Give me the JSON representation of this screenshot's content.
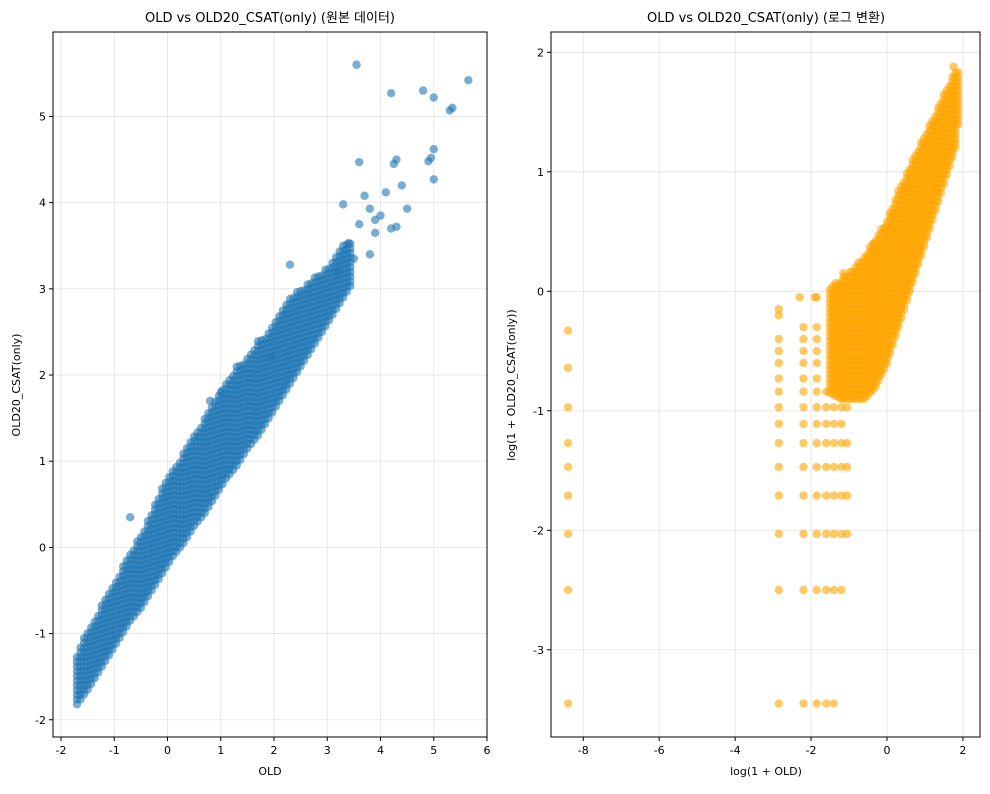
{
  "chart_data": [
    {
      "type": "scatter",
      "title": "OLD vs OLD20_CSAT(only) (원본 데이터)",
      "xlabel": "OLD",
      "ylabel": "OLD20_CSAT(only)",
      "xlim": [
        -2.15,
        6.0
      ],
      "ylim": [
        -2.2,
        5.98
      ],
      "xticks": [
        -2,
        -1,
        0,
        1,
        2,
        3,
        4,
        5,
        6
      ],
      "yticks": [
        -2,
        -1,
        0,
        1,
        2,
        3,
        4,
        5
      ],
      "grid": true,
      "color": "#1f77b4",
      "alpha": 0.6,
      "dense_band": [
        [
          -1.7,
          -1.82,
          -1.25
        ],
        [
          -1.5,
          -1.65,
          -0.95
        ],
        [
          -1.3,
          -1.45,
          -0.75
        ],
        [
          -1.1,
          -1.25,
          -0.5
        ],
        [
          -0.9,
          -1.05,
          -0.3
        ],
        [
          -0.7,
          -0.85,
          -0.05
        ],
        [
          -0.5,
          -0.7,
          0.15
        ],
        [
          -0.3,
          -0.5,
          0.4
        ],
        [
          -0.1,
          -0.3,
          0.7
        ],
        [
          0.1,
          -0.1,
          0.9
        ],
        [
          0.3,
          0.05,
          1.1
        ],
        [
          0.5,
          0.25,
          1.3
        ],
        [
          0.7,
          0.4,
          1.5
        ],
        [
          0.9,
          0.6,
          1.7
        ],
        [
          1.1,
          0.8,
          1.9
        ],
        [
          1.3,
          0.95,
          2.1
        ],
        [
          1.5,
          1.15,
          2.2
        ],
        [
          1.7,
          1.3,
          2.4
        ],
        [
          1.9,
          1.5,
          2.5
        ],
        [
          2.1,
          1.7,
          2.7
        ],
        [
          2.3,
          1.9,
          2.9
        ],
        [
          2.5,
          2.1,
          3.0
        ],
        [
          2.7,
          2.3,
          3.1
        ],
        [
          2.9,
          2.5,
          3.2
        ],
        [
          3.1,
          2.7,
          3.3
        ],
        [
          3.3,
          2.9,
          3.5
        ],
        [
          3.5,
          3.1,
          3.6
        ]
      ],
      "points": [
        [
          3.55,
          5.6
        ],
        [
          5.65,
          5.42
        ],
        [
          4.8,
          5.3
        ],
        [
          4.2,
          5.27
        ],
        [
          5.0,
          5.22
        ],
        [
          5.35,
          5.1
        ],
        [
          5.3,
          5.07
        ],
        [
          5.0,
          4.62
        ],
        [
          4.95,
          4.52
        ],
        [
          4.9,
          4.48
        ],
        [
          4.3,
          4.5
        ],
        [
          4.25,
          4.45
        ],
        [
          3.6,
          4.47
        ],
        [
          5.0,
          4.27
        ],
        [
          4.4,
          4.2
        ],
        [
          4.1,
          4.12
        ],
        [
          3.7,
          4.08
        ],
        [
          3.8,
          3.93
        ],
        [
          3.3,
          3.98
        ],
        [
          4.5,
          3.93
        ],
        [
          4.3,
          3.72
        ],
        [
          4.0,
          3.85
        ],
        [
          3.9,
          3.8
        ],
        [
          1.95,
          2.2
        ],
        [
          1.0,
          1.8
        ],
        [
          0.8,
          1.7
        ],
        [
          -0.7,
          0.35
        ],
        [
          2.3,
          3.28
        ],
        [
          3.2,
          3.2
        ],
        [
          3.5,
          3.35
        ],
        [
          3.8,
          3.4
        ],
        [
          3.4,
          3.53
        ],
        [
          3.9,
          3.65
        ],
        [
          3.6,
          3.75
        ],
        [
          4.2,
          3.7
        ]
      ]
    },
    {
      "type": "scatter",
      "title": "OLD vs OLD20_CSAT(only) (로그 변환)",
      "xlabel": "log(1 + OLD)",
      "ylabel": "log(1 + OLD20_CSAT(only))",
      "xlim": [
        -8.85,
        2.45
      ],
      "ylim": [
        -3.73,
        2.17
      ],
      "xticks": [
        -8,
        -6,
        -4,
        -2,
        0,
        2
      ],
      "yticks": [
        -3,
        -2,
        -1,
        0,
        1,
        2
      ],
      "grid": true,
      "color": "#ffa500",
      "alpha": 0.6,
      "dense_band": [
        [
          -1.5,
          -0.85,
          0.05
        ],
        [
          -1.2,
          -0.9,
          0.1
        ],
        [
          -0.9,
          -0.9,
          0.2
        ],
        [
          -0.6,
          -0.9,
          0.3
        ],
        [
          -0.3,
          -0.8,
          0.45
        ],
        [
          0.0,
          -0.6,
          0.6
        ],
        [
          0.3,
          -0.3,
          0.85
        ],
        [
          0.6,
          0.0,
          1.05
        ],
        [
          0.9,
          0.3,
          1.25
        ],
        [
          1.2,
          0.6,
          1.45
        ],
        [
          1.5,
          0.9,
          1.65
        ],
        [
          1.8,
          1.2,
          1.85
        ],
        [
          1.95,
          1.6,
          1.85
        ]
      ],
      "columns": [
        {
          "x": -8.4,
          "y": [
            -3.45,
            -2.5,
            -2.03,
            -1.71,
            -1.47,
            -1.27,
            -0.97,
            -0.64,
            -0.33
          ]
        },
        {
          "x": -2.85,
          "y": [
            -3.45,
            -2.5,
            -2.03,
            -1.71,
            -1.47,
            -1.27,
            -1.11,
            -0.97,
            -0.84,
            -0.73,
            -0.6,
            -0.5,
            -0.4,
            -0.2,
            -0.15
          ]
        },
        {
          "x": -2.2,
          "y": [
            -3.45,
            -2.5,
            -2.03,
            -1.71,
            -1.47,
            -1.27,
            -1.11,
            -0.97,
            -0.84,
            -0.73,
            -0.6,
            -0.5,
            -0.4,
            -0.3
          ]
        },
        {
          "x": -1.85,
          "y": [
            -3.45,
            -2.5,
            -2.03,
            -1.71,
            -1.47,
            -1.27,
            -1.11,
            -0.97,
            -0.84,
            -0.73,
            -0.6,
            -0.5,
            -0.4,
            -0.3,
            -0.05
          ]
        },
        {
          "x": -1.6,
          "y": [
            -3.45,
            -2.5,
            -2.03,
            -1.71,
            -1.47,
            -1.27,
            -1.11,
            -0.97,
            -0.84
          ]
        },
        {
          "x": -1.4,
          "y": [
            -3.45,
            -2.5,
            -2.03,
            -1.71,
            -1.47,
            -1.27,
            -1.11,
            -0.97
          ]
        },
        {
          "x": -1.2,
          "y": [
            -2.5,
            -2.03,
            -1.71,
            -1.47,
            -1.27,
            -1.11,
            -0.97
          ]
        },
        {
          "x": -1.05,
          "y": [
            -2.03,
            -1.71,
            -1.47,
            -1.27,
            -0.97
          ]
        }
      ],
      "points": [
        [
          -1.15,
          0.15
        ],
        [
          -0.75,
          0.05
        ],
        [
          -0.5,
          0.25
        ],
        [
          -0.35,
          0.4
        ],
        [
          0.0,
          0.5
        ],
        [
          -2.3,
          -0.05
        ],
        [
          -1.9,
          -0.05
        ],
        [
          1.75,
          1.88
        ]
      ]
    }
  ]
}
